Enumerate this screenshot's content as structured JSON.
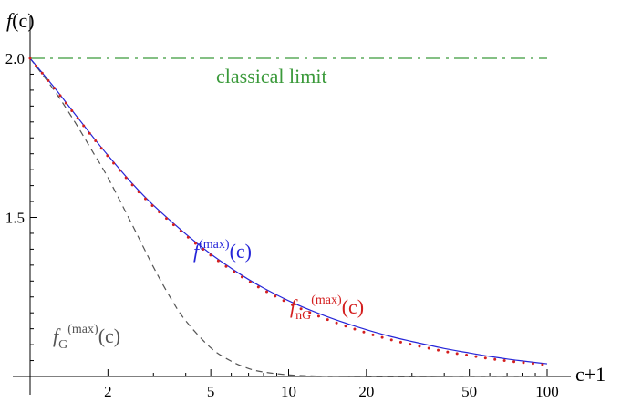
{
  "chart_data": {
    "type": "line",
    "title": "",
    "xlabel": "c+1",
    "ylabel": "f(c)",
    "x_scale": "log",
    "xlim": [
      1,
      100
    ],
    "ylim": [
      1.0,
      2.0
    ],
    "x_ticks": [
      {
        "value": 2,
        "label": "2"
      },
      {
        "value": 5,
        "label": "5"
      },
      {
        "value": 10,
        "label": "10"
      },
      {
        "value": 20,
        "label": "20"
      },
      {
        "value": 50,
        "label": "50"
      },
      {
        "value": 100,
        "label": "100"
      }
    ],
    "y_ticks": [
      {
        "value": 1.5,
        "label": "1.5"
      },
      {
        "value": 2.0,
        "label": "2.0"
      }
    ],
    "grid": false,
    "series": [
      {
        "name": "f(max)(c)",
        "label_main": "f",
        "label_sup": "(max)",
        "label_sub": "",
        "label_tail": "(c)",
        "style": "solid",
        "color": "#2525d8",
        "x": [
          1,
          1.25,
          1.5,
          1.75,
          2,
          2.5,
          3,
          4,
          5,
          6,
          7,
          8,
          10,
          12,
          15,
          20,
          25,
          30,
          40,
          50,
          60,
          70,
          80,
          90,
          100
        ],
        "y": [
          2.0,
          1.905,
          1.822,
          1.753,
          1.695,
          1.604,
          1.538,
          1.448,
          1.385,
          1.34,
          1.305,
          1.278,
          1.238,
          1.21,
          1.18,
          1.147,
          1.125,
          1.11,
          1.088,
          1.074,
          1.063,
          1.055,
          1.049,
          1.044,
          1.04
        ]
      },
      {
        "name": "fnG(max)(c)",
        "label_main": "f",
        "label_sup": "(max)",
        "label_sub": "nG",
        "label_tail": "(c)",
        "style": "dotted",
        "color": "#d41f1f",
        "x": [
          1,
          1.25,
          1.5,
          1.75,
          2,
          2.5,
          3,
          4,
          5,
          6,
          7,
          8,
          10,
          12,
          15,
          20,
          25,
          30,
          40,
          50,
          60,
          70,
          80,
          90,
          100
        ],
        "y": [
          2.0,
          1.903,
          1.82,
          1.751,
          1.692,
          1.6,
          1.534,
          1.444,
          1.381,
          1.335,
          1.3,
          1.272,
          1.231,
          1.202,
          1.171,
          1.137,
          1.115,
          1.1,
          1.079,
          1.066,
          1.056,
          1.049,
          1.044,
          1.04,
          1.036
        ]
      },
      {
        "name": "fG(max)(c)",
        "label_main": "f",
        "label_sup": "(max)",
        "label_sub": "G",
        "label_tail": "(c)",
        "style": "dashed",
        "color": "#555555",
        "x": [
          1,
          1.25,
          1.5,
          1.75,
          2,
          2.5,
          3,
          3.5,
          4,
          5,
          6,
          7,
          8,
          10,
          12,
          15,
          20,
          30,
          50,
          100
        ],
        "y": [
          2.0,
          1.895,
          1.796,
          1.705,
          1.625,
          1.472,
          1.344,
          1.246,
          1.175,
          1.09,
          1.048,
          1.025,
          1.014,
          1.005,
          1.002,
          1.0,
          0.999,
          0.999,
          1.0,
          1.0
        ]
      },
      {
        "name": "classical limit",
        "label_main": "classical limit",
        "style": "dashdot",
        "color": "#3b9a3b",
        "x": [
          1,
          100
        ],
        "y": [
          2.0,
          2.0
        ]
      }
    ]
  }
}
